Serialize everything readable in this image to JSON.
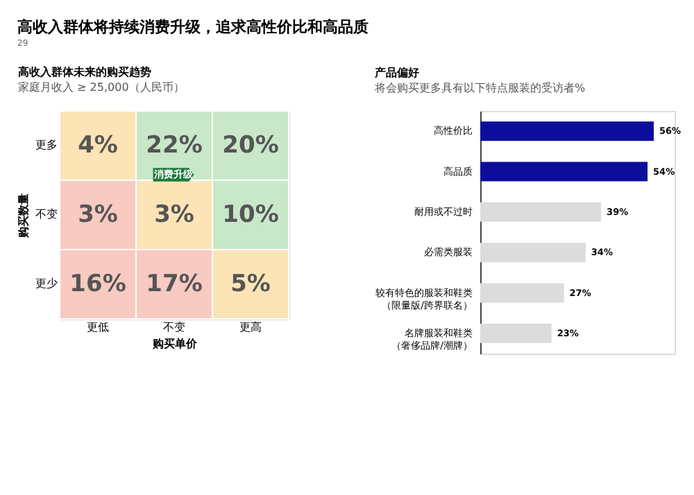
{
  "chart_data": [
    {
      "type": "heatmap",
      "title": "高收入群体将持续消费升级，追求高性价比和高品质",
      "subtitle": "高收入群体未来的购买趋势",
      "annotations": [
        "家庭月收入 ≥ 25,000（人民币）",
        "消费升级"
      ],
      "xlabel": "购买单价",
      "ylabel": "购买数量",
      "categories": [
        "更低",
        "不变",
        "更高"
      ],
      "y_categories": [
        "更多",
        "不变",
        "更少"
      ],
      "cells": [
        [
          4,
          22,
          20
        ],
        [
          3,
          3,
          10
        ],
        [
          16,
          17,
          5
        ]
      ],
      "cell_labels": [
        [
          "4%",
          "22%",
          "20%"
        ],
        [
          "3%",
          "3%",
          "10%"
        ],
        [
          "16%",
          "17%",
          "5%"
        ]
      ],
      "colors": [
        [
          "#fde4b6",
          "#c8e8c9",
          "#c8e8c9"
        ],
        [
          "#f8cac1",
          "#fde4b6",
          "#c8e8c9"
        ],
        [
          "#f8cac1",
          "#f8cac1",
          "#fde4b6"
        ]
      ]
    },
    {
      "type": "bar",
      "orientation": "horizontal",
      "subtitle": "产品偏好",
      "annotations": [
        "将会购买更多具有以下特点服装的受访者%",
        "29"
      ],
      "categories": [
        "高性价比",
        "高品质",
        "耐用或不过时",
        "必需类服装",
        "较有特色的服装和鞋类（限量版/跨界联名）",
        "名牌服装和鞋类（奢侈品牌/潮牌）"
      ],
      "values": [
        56,
        54,
        39,
        34,
        27,
        23
      ],
      "value_labels": [
        "56%",
        "54%",
        "39%",
        "34%",
        "27%",
        "23%"
      ],
      "colors": [
        "#0d0d9c",
        "#0d0d9c",
        "#dcdcdc",
        "#dcdcdc",
        "#dcdcdc",
        "#dcdcdc"
      ]
    }
  ]
}
